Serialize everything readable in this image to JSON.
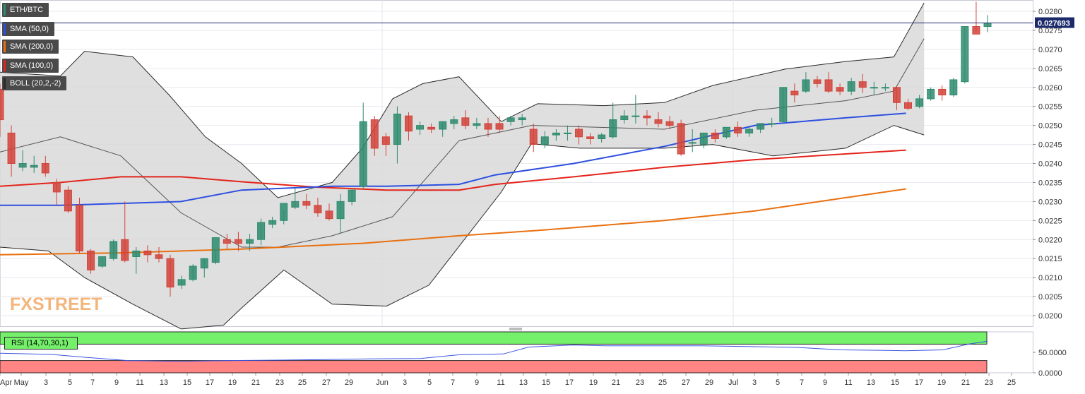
{
  "symbol": "ETH/BTC",
  "legend": [
    {
      "label": "SMA (50,0)",
      "color": "#2d4fe0"
    },
    {
      "label": "SMA (200,0)",
      "color": "#e9700f"
    },
    {
      "label": "SMA (100,0)",
      "color": "#e3241b"
    },
    {
      "label": "BOLL (20,2,-2)",
      "color": "#2a2a2a"
    }
  ],
  "rsi_label": "RSI (14,70,30,1)",
  "brand": {
    "part1": "FX",
    "part2": "STREET"
  },
  "price_tag": "0.027693",
  "colors": {
    "up": "#2e8b6e",
    "down": "#d2433a",
    "band_fill": "#d9d9d9"
  },
  "chart_data": [
    {
      "type": "candlestick",
      "title": "ETH/BTC",
      "ylim": [
        0.0196,
        0.0284
      ],
      "grid": true,
      "legend_position": "top-left",
      "x_tick_labels": [
        "Apr",
        "May",
        "3",
        "5",
        "7",
        "9",
        "11",
        "13",
        "15",
        "17",
        "19",
        "21",
        "23",
        "25",
        "27",
        "29",
        "Jun",
        "3",
        "5",
        "7",
        "9",
        "11",
        "13",
        "15",
        "17",
        "19",
        "21",
        "23",
        "25",
        "27",
        "29",
        "Jul",
        "3",
        "5",
        "7",
        "9",
        "11",
        "13",
        "15",
        "17",
        "19",
        "21",
        "23",
        "25"
      ],
      "y_ticks": [
        "0.0200",
        "0.0205",
        "0.0210",
        "0.0215",
        "0.0220",
        "0.0225",
        "0.0230",
        "0.0235",
        "0.0240",
        "0.0245",
        "0.0250",
        "0.0255",
        "0.0260",
        "0.0265",
        "0.0270",
        "0.0275",
        "0.0280"
      ],
      "y_tick_values": [
        0.02,
        0.0205,
        0.021,
        0.0215,
        0.022,
        0.0225,
        0.023,
        0.0235,
        0.024,
        0.0245,
        0.025,
        0.0255,
        0.026,
        0.0265,
        0.027,
        0.0275,
        0.028
      ],
      "current_price": 0.027693,
      "ohlc": [
        [
          0.02595,
          0.0261,
          0.02515,
          0.0247
        ],
        [
          0.0248,
          0.025,
          0.024,
          0.02365
        ],
        [
          0.0239,
          0.02435,
          0.024,
          0.0238
        ],
        [
          0.0239,
          0.0242,
          0.02395,
          0.02375
        ],
        [
          0.024,
          0.0242,
          0.02375,
          0.02365
        ],
        [
          0.0235,
          0.0236,
          0.02325,
          0.0229
        ],
        [
          0.0233,
          0.0234,
          0.02275,
          0.0227
        ],
        [
          0.0229,
          0.0231,
          0.0217,
          0.02165
        ],
        [
          0.0217,
          0.02175,
          0.0212,
          0.0211
        ],
        [
          0.0213,
          0.02155,
          0.02155,
          0.02125
        ],
        [
          0.0215,
          0.022,
          0.02195,
          0.02145
        ],
        [
          0.022,
          0.023,
          0.02145,
          0.0214
        ],
        [
          0.02155,
          0.0218,
          0.0217,
          0.0211
        ],
        [
          0.0217,
          0.02185,
          0.0216,
          0.0214
        ],
        [
          0.0216,
          0.0218,
          0.0215,
          0.0214
        ],
        [
          0.0215,
          0.0216,
          0.02075,
          0.0205
        ],
        [
          0.0208,
          0.02105,
          0.02095,
          0.0207
        ],
        [
          0.02095,
          0.02135,
          0.0213,
          0.0209
        ],
        [
          0.02125,
          0.0215,
          0.0215,
          0.021
        ],
        [
          0.0214,
          0.0217,
          0.02205,
          0.02135
        ],
        [
          0.022,
          0.02215,
          0.0219,
          0.02175
        ],
        [
          0.022,
          0.0222,
          0.0219,
          0.0217
        ],
        [
          0.0219,
          0.02215,
          0.022,
          0.0217
        ],
        [
          0.022,
          0.02255,
          0.02245,
          0.02185
        ],
        [
          0.0224,
          0.0226,
          0.0225,
          0.0223
        ],
        [
          0.0225,
          0.02275,
          0.02295,
          0.0224
        ],
        [
          0.02285,
          0.02335,
          0.023,
          0.0228
        ],
        [
          0.023,
          0.0232,
          0.0229,
          0.0228
        ],
        [
          0.0229,
          0.0231,
          0.0227,
          0.0226
        ],
        [
          0.02275,
          0.02295,
          0.02255,
          0.0225
        ],
        [
          0.02255,
          0.0232,
          0.023,
          0.02215
        ],
        [
          0.023,
          0.0233,
          0.0233,
          0.0229
        ],
        [
          0.0234,
          0.0256,
          0.0251,
          0.02335
        ],
        [
          0.02515,
          0.02525,
          0.0244,
          0.0242
        ],
        [
          0.0247,
          0.0248,
          0.0245,
          0.0242
        ],
        [
          0.0245,
          0.0255,
          0.0253,
          0.024
        ],
        [
          0.02525,
          0.02535,
          0.02485,
          0.0246
        ],
        [
          0.0249,
          0.0251,
          0.025,
          0.02475
        ],
        [
          0.02495,
          0.02505,
          0.0249,
          0.0248
        ],
        [
          0.0249,
          0.0251,
          0.0251,
          0.0247
        ],
        [
          0.02505,
          0.02525,
          0.02515,
          0.0249
        ],
        [
          0.0252,
          0.0254,
          0.025,
          0.0249
        ],
        [
          0.025,
          0.0252,
          0.02505,
          0.0249
        ],
        [
          0.02505,
          0.0252,
          0.0249,
          0.0247
        ],
        [
          0.02505,
          0.02525,
          0.0249,
          0.0248
        ],
        [
          0.0251,
          0.02525,
          0.0252,
          0.025
        ],
        [
          0.02515,
          0.0253,
          0.0252,
          0.025
        ],
        [
          0.0249,
          0.02505,
          0.0245,
          0.0243
        ],
        [
          0.0245,
          0.02485,
          0.0247,
          0.0244
        ],
        [
          0.02475,
          0.0249,
          0.0248,
          0.0246
        ],
        [
          0.0248,
          0.025,
          0.0248,
          0.0246
        ],
        [
          0.0249,
          0.025,
          0.0247,
          0.0245
        ],
        [
          0.0247,
          0.0248,
          0.02465,
          0.0245
        ],
        [
          0.02465,
          0.0248,
          0.02475,
          0.02455
        ],
        [
          0.0247,
          0.0256,
          0.02515,
          0.02465
        ],
        [
          0.02515,
          0.0254,
          0.02525,
          0.02505
        ],
        [
          0.02525,
          0.0258,
          0.02525,
          0.02505
        ],
        [
          0.02525,
          0.0254,
          0.0252,
          0.025
        ],
        [
          0.02515,
          0.02535,
          0.02505,
          0.02495
        ],
        [
          0.0251,
          0.02525,
          0.025,
          0.0249
        ],
        [
          0.02505,
          0.02515,
          0.02425,
          0.0242
        ],
        [
          0.02455,
          0.0249,
          0.02455,
          0.0243
        ],
        [
          0.0245,
          0.0248,
          0.0248,
          0.0244
        ],
        [
          0.0248,
          0.0249,
          0.02465,
          0.02455
        ],
        [
          0.0247,
          0.0249,
          0.02495,
          0.02465
        ],
        [
          0.02495,
          0.0251,
          0.0248,
          0.0247
        ],
        [
          0.0248,
          0.02495,
          0.0249,
          0.0247
        ],
        [
          0.0249,
          0.02505,
          0.02505,
          0.0248
        ],
        [
          0.02505,
          0.0252,
          0.02505,
          0.02495
        ],
        [
          0.0251,
          0.026,
          0.026,
          0.02505
        ],
        [
          0.0259,
          0.0261,
          0.0258,
          0.0256
        ],
        [
          0.0259,
          0.0264,
          0.0262,
          0.02585
        ],
        [
          0.0262,
          0.0263,
          0.0261,
          0.026
        ],
        [
          0.0262,
          0.0264,
          0.0259,
          0.02585
        ],
        [
          0.026,
          0.0261,
          0.0259,
          0.0258
        ],
        [
          0.0259,
          0.02625,
          0.02615,
          0.0258
        ],
        [
          0.02615,
          0.02635,
          0.026,
          0.02585
        ],
        [
          0.026,
          0.02615,
          0.026,
          0.0258
        ],
        [
          0.026,
          0.0261,
          0.026,
          0.0259
        ],
        [
          0.026,
          0.02605,
          0.0256,
          0.0254
        ],
        [
          0.0256,
          0.0257,
          0.02545,
          0.0254
        ],
        [
          0.0255,
          0.0258,
          0.0257,
          0.02545
        ],
        [
          0.0257,
          0.026,
          0.02595,
          0.02565
        ],
        [
          0.02595,
          0.02605,
          0.0258,
          0.02565
        ],
        [
          0.0258,
          0.02625,
          0.0262,
          0.02575
        ],
        [
          0.02615,
          0.0276,
          0.0276,
          0.0261
        ],
        [
          0.0276,
          0.02825,
          0.0274,
          0.02745
        ],
        [
          0.0276,
          0.0279,
          0.02769,
          0.02745
        ]
      ],
      "sma50": [
        [
          0,
          0.0229
        ],
        [
          10,
          0.0229
        ],
        [
          30,
          0.023
        ],
        [
          40,
          0.0233
        ],
        [
          55,
          0.0234
        ],
        [
          64,
          0.0234
        ],
        [
          76,
          0.02345
        ],
        [
          82,
          0.0237
        ],
        [
          95,
          0.024
        ],
        [
          110,
          0.02445
        ],
        [
          125,
          0.025
        ],
        [
          140,
          0.0252
        ],
        [
          150,
          0.02532
        ]
      ],
      "sma100": [
        [
          0,
          0.0234
        ],
        [
          10,
          0.0235
        ],
        [
          20,
          0.02365
        ],
        [
          30,
          0.02365
        ],
        [
          40,
          0.02352
        ],
        [
          52,
          0.02338
        ],
        [
          64,
          0.0233
        ],
        [
          76,
          0.0233
        ],
        [
          82,
          0.02345
        ],
        [
          95,
          0.02365
        ],
        [
          110,
          0.0239
        ],
        [
          125,
          0.0241
        ],
        [
          140,
          0.02425
        ],
        [
          150,
          0.02435
        ]
      ],
      "sma200": [
        [
          0,
          0.0216
        ],
        [
          20,
          0.02165
        ],
        [
          40,
          0.02175
        ],
        [
          60,
          0.0219
        ],
        [
          76,
          0.0221
        ],
        [
          90,
          0.02225
        ],
        [
          110,
          0.0225
        ],
        [
          125,
          0.02275
        ],
        [
          140,
          0.0231
        ],
        [
          150,
          0.02333
        ]
      ],
      "boll_upper": [
        [
          0,
          0.0264
        ],
        [
          10,
          0.0263
        ],
        [
          14,
          0.02695
        ],
        [
          22,
          0.0268
        ],
        [
          28,
          0.0258
        ],
        [
          34,
          0.0247
        ],
        [
          40,
          0.024
        ],
        [
          46,
          0.0231
        ],
        [
          55,
          0.0235
        ],
        [
          60,
          0.0244
        ],
        [
          65,
          0.0257
        ],
        [
          70,
          0.0261
        ],
        [
          76,
          0.02628
        ],
        [
          83,
          0.0251
        ],
        [
          89,
          0.02557
        ],
        [
          100,
          0.02552
        ],
        [
          110,
          0.0256
        ],
        [
          118,
          0.02605
        ],
        [
          130,
          0.02648
        ],
        [
          140,
          0.02668
        ],
        [
          148,
          0.0268
        ],
        [
          153,
          0.02822
        ]
      ],
      "boll_mid": [
        [
          0,
          0.0243
        ],
        [
          10,
          0.0247
        ],
        [
          20,
          0.0242
        ],
        [
          30,
          0.0227
        ],
        [
          40,
          0.0218
        ],
        [
          46,
          0.0218
        ],
        [
          55,
          0.0221
        ],
        [
          65,
          0.0226
        ],
        [
          76,
          0.0246
        ],
        [
          88,
          0.025
        ],
        [
          110,
          0.0249
        ],
        [
          125,
          0.0254
        ],
        [
          140,
          0.02565
        ],
        [
          148,
          0.0259
        ],
        [
          153,
          0.02728
        ]
      ],
      "boll_lower": [
        [
          0,
          0.0218
        ],
        [
          8,
          0.0217
        ],
        [
          14,
          0.021
        ],
        [
          22,
          0.0203
        ],
        [
          30,
          0.01965
        ],
        [
          37,
          0.01975
        ],
        [
          40,
          0.0202
        ],
        [
          47,
          0.0212
        ],
        [
          55,
          0.0203
        ],
        [
          64,
          0.02025
        ],
        [
          71,
          0.0208
        ],
        [
          83,
          0.02325
        ],
        [
          88,
          0.02452
        ],
        [
          96,
          0.0244
        ],
        [
          110,
          0.0244
        ],
        [
          118,
          0.0245
        ],
        [
          128,
          0.0242
        ],
        [
          140,
          0.0244
        ],
        [
          148,
          0.025
        ],
        [
          153,
          0.02475
        ]
      ],
      "rsi": {
        "ylim": [
          0,
          100
        ],
        "y_ticks": [
          "50.0000",
          "0.0000"
        ],
        "y_tick_values": [
          50,
          0
        ],
        "upper_level": 70,
        "lower_level": 30,
        "values": [
          [
            0,
            48
          ],
          [
            8,
            45
          ],
          [
            14,
            37
          ],
          [
            20,
            30
          ],
          [
            28,
            28
          ],
          [
            36,
            30
          ],
          [
            44,
            31
          ],
          [
            50,
            32
          ],
          [
            58,
            34
          ],
          [
            66,
            35
          ],
          [
            72,
            44
          ],
          [
            79,
            46
          ],
          [
            83,
            63
          ],
          [
            90,
            68
          ],
          [
            95,
            66
          ],
          [
            110,
            66
          ],
          [
            118,
            64
          ],
          [
            125,
            62
          ],
          [
            132,
            56
          ],
          [
            138,
            55
          ],
          [
            142,
            54
          ],
          [
            148,
            56
          ],
          [
            152,
            70
          ],
          [
            155,
            77
          ]
        ]
      }
    }
  ]
}
